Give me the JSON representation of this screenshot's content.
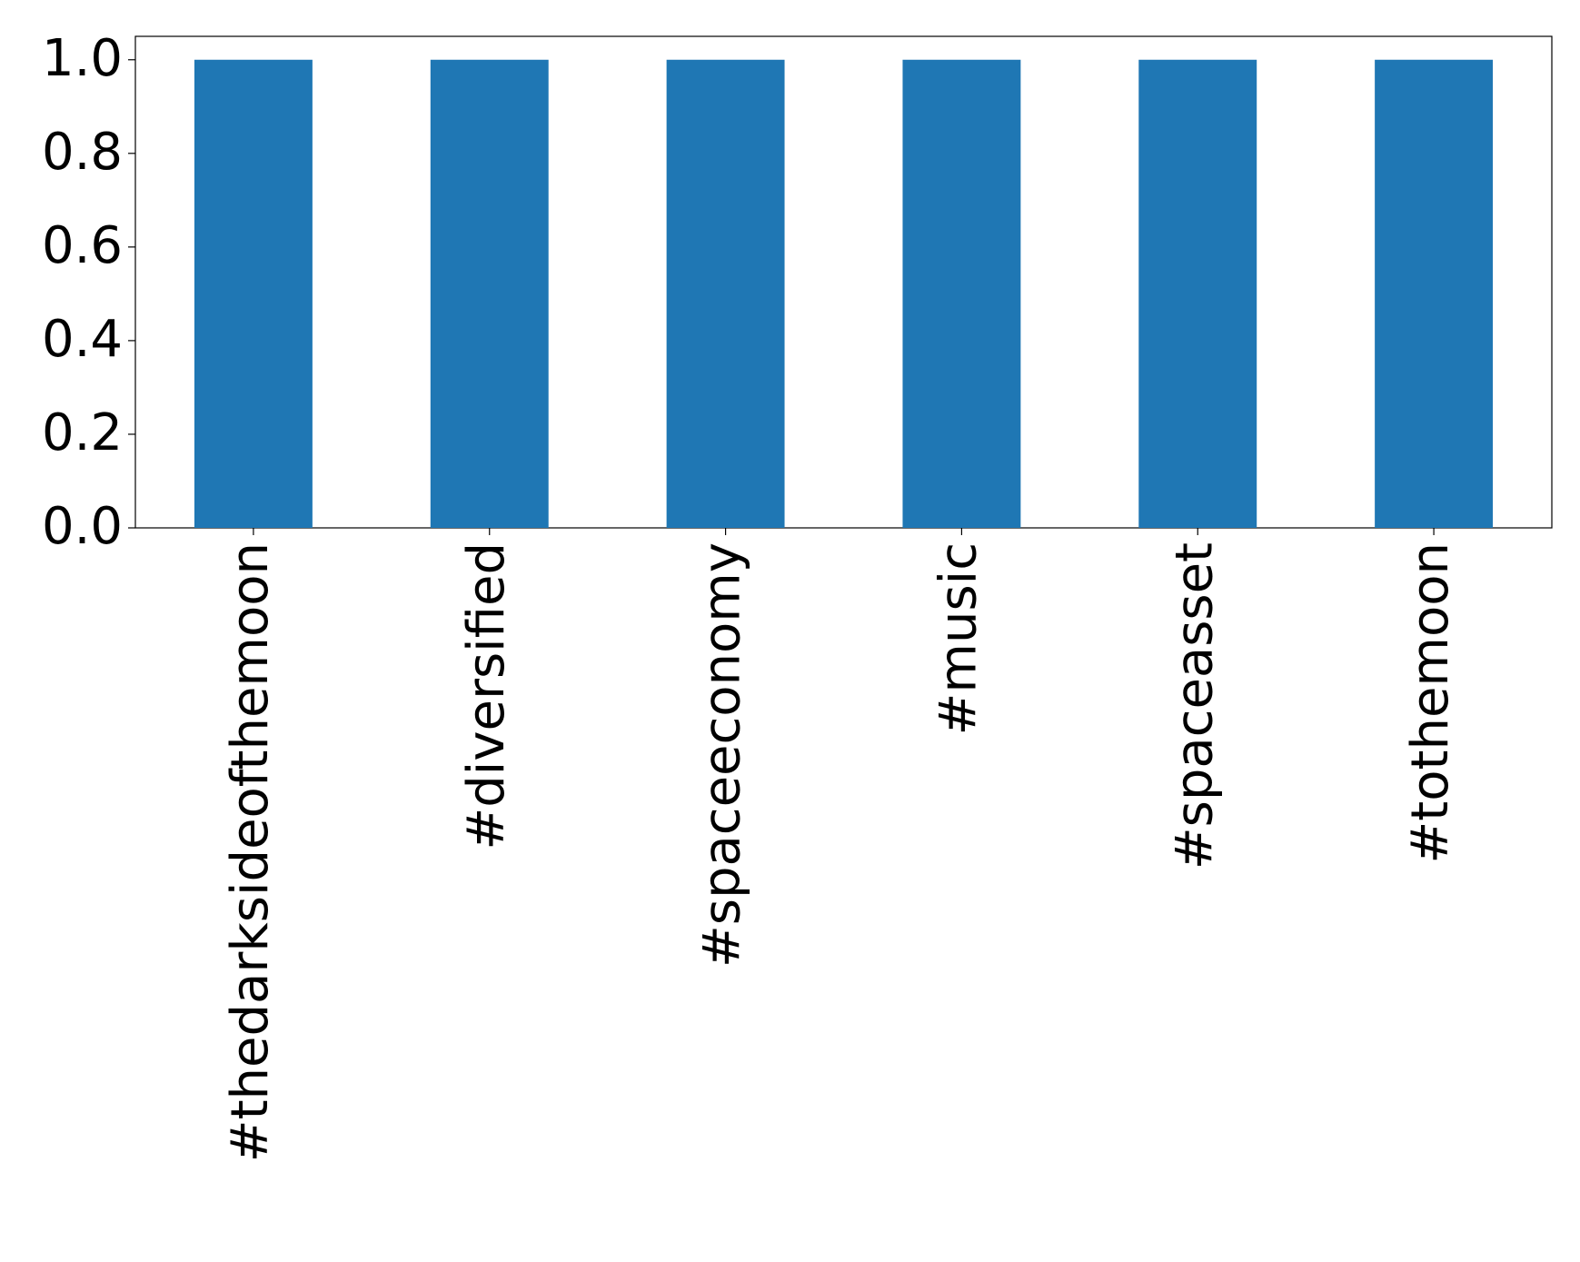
{
  "chart_data": {
    "type": "bar",
    "categories": [
      "#thedarksideofthemoon",
      "#diversified",
      "#spaceeconomy",
      "#music",
      "#spaceasset",
      "#tothemoon"
    ],
    "values": [
      1,
      1,
      1,
      1,
      1,
      1
    ],
    "color": "#1f77b4",
    "ylim": [
      0,
      1.05
    ],
    "yticks": [
      {
        "value": 0,
        "label": "0.0"
      },
      {
        "value": 0.2,
        "label": "0.2"
      },
      {
        "value": 0.4,
        "label": "0.4"
      },
      {
        "value": 0.6,
        "label": "0.6"
      },
      {
        "value": 0.8,
        "label": "0.8"
      },
      {
        "value": 1,
        "label": "1.0"
      }
    ],
    "grid": false
  }
}
